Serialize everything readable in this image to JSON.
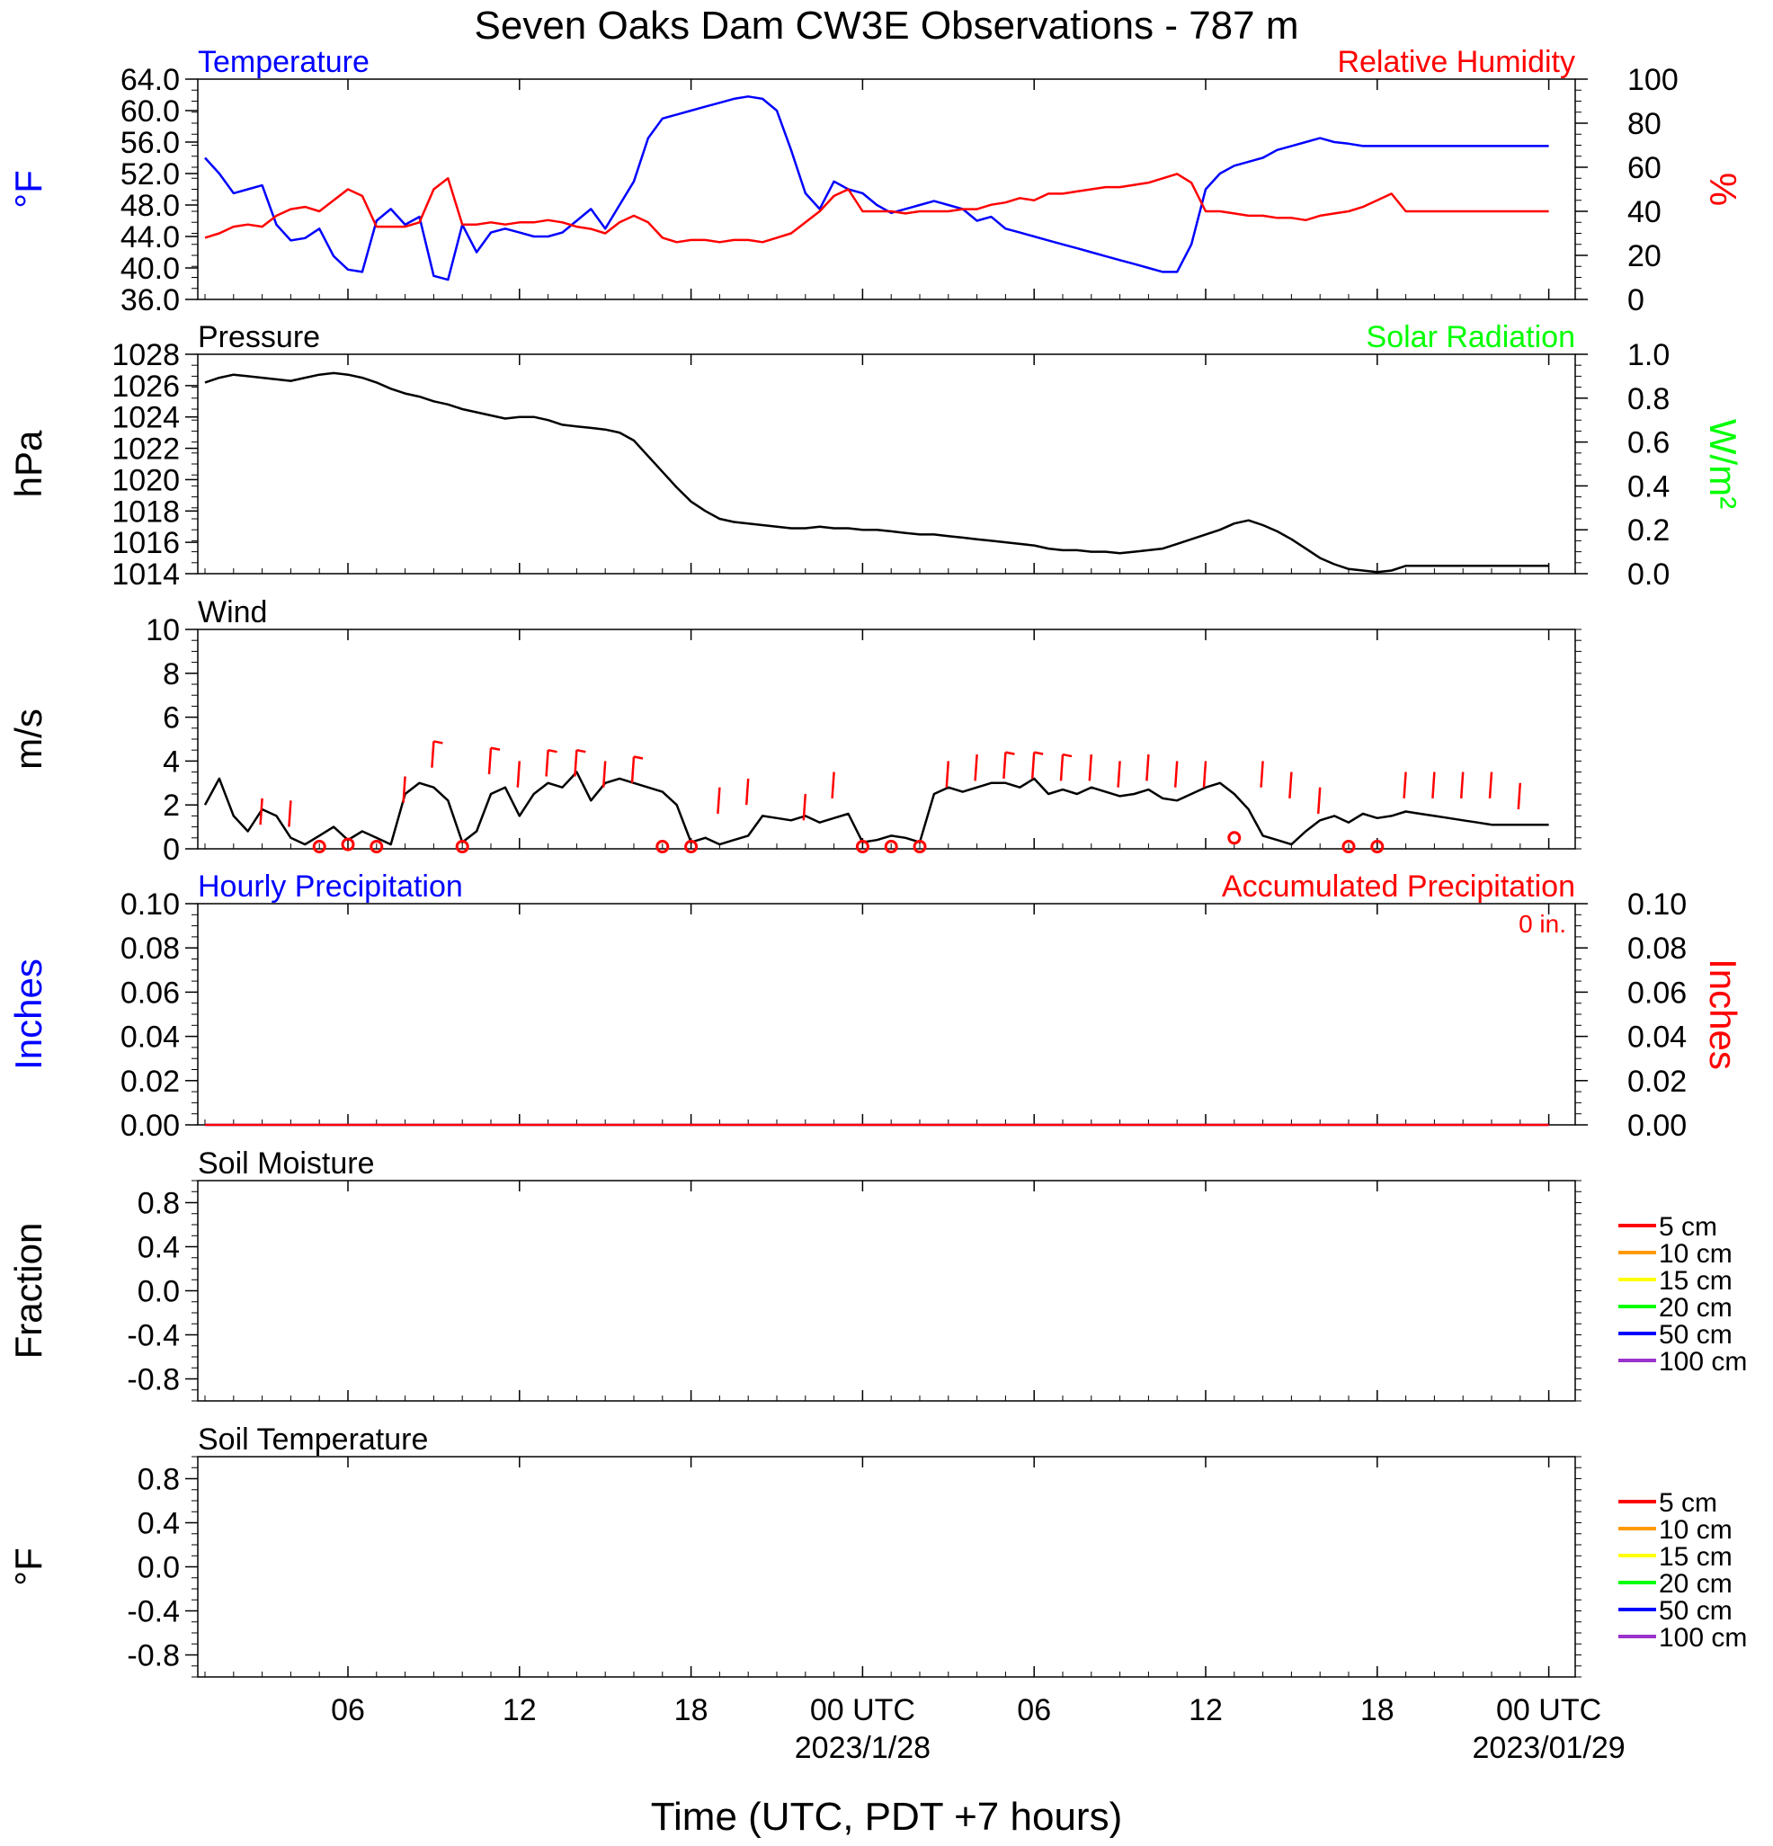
{
  "page": {
    "title": "Seven Oaks Dam CW3E Observations - 787 m",
    "xlabel": "Time (UTC, PDT +7 hours)"
  },
  "colors": {
    "temperature": "#0000ff",
    "humidity": "#ff0000",
    "pressure": "#000000",
    "solar": "#00ff00",
    "wind": "#000000",
    "barb": "#ff0000",
    "hourly_precip": "#0000ff",
    "accum_precip": "#ff0000"
  },
  "x_axis": {
    "range_hours": [
      0,
      48
    ],
    "ticks": [
      {
        "h": 5,
        "label": "06"
      },
      {
        "h": 11,
        "label": "12"
      },
      {
        "h": 17,
        "label": "18"
      },
      {
        "h": 23,
        "label": "00 UTC",
        "date": "2023/1/28"
      },
      {
        "h": 29,
        "label": "06"
      },
      {
        "h": 35,
        "label": "12"
      },
      {
        "h": 41,
        "label": "18"
      },
      {
        "h": 47,
        "label": "00 UTC",
        "date": "2023/01/29"
      }
    ]
  },
  "chart_data": [
    {
      "type": "line",
      "name": "Temperature / Relative Humidity",
      "left_title": "Temperature",
      "right_title": "Relative Humidity",
      "ylabel_left": "°F",
      "ylabel_right": "%",
      "ylim_left": [
        36,
        64
      ],
      "ylim_right": [
        0,
        100
      ],
      "yticks_left": [
        "36.0",
        "40.0",
        "44.0",
        "48.0",
        "52.0",
        "56.0",
        "60.0",
        "64.0"
      ],
      "yticks_right": [
        "0",
        "20",
        "40",
        "60",
        "80",
        "100"
      ],
      "x_hours": [
        0,
        0.5,
        1,
        1.5,
        2,
        2.5,
        3,
        3.5,
        4,
        4.5,
        5,
        5.5,
        6,
        6.5,
        7,
        7.5,
        8,
        8.5,
        9,
        9.5,
        10,
        10.5,
        11,
        11.5,
        12,
        12.5,
        13,
        13.5,
        14,
        14.5,
        15,
        15.5,
        16,
        16.5,
        17,
        17.5,
        18,
        18.5,
        19,
        19.5,
        20,
        20.5,
        21,
        21.5,
        22,
        22.5,
        23,
        23.5,
        24,
        24.5,
        25,
        25.5,
        26,
        26.5,
        27,
        27.5,
        28,
        28.5,
        29,
        29.5,
        30,
        30.5,
        31,
        31.5,
        32,
        32.5,
        33,
        33.5,
        34,
        34.5,
        35,
        35.5,
        36,
        36.5,
        37,
        37.5,
        38,
        38.5,
        39,
        39.5,
        40,
        40.5,
        41,
        41.5,
        42,
        42.5,
        43,
        43.5,
        44,
        44.5,
        45,
        45.5,
        46,
        46.5,
        47
      ],
      "series": [
        {
          "name": "Temperature",
          "axis": "left",
          "color": "#0000ff",
          "values": [
            54,
            52,
            49.5,
            50,
            50.5,
            45.5,
            43.5,
            43.8,
            45,
            41.5,
            39.8,
            39.5,
            46,
            47.5,
            45.5,
            46.5,
            39,
            38.5,
            45.5,
            42,
            44.5,
            45,
            44.5,
            44,
            44,
            44.5,
            46,
            47.5,
            45,
            48,
            51,
            56.5,
            59,
            59.5,
            60,
            60.5,
            61,
            61.5,
            61.8,
            61.5,
            60,
            55,
            49.5,
            47.5,
            51,
            50,
            49.5,
            48,
            47,
            47.5,
            48,
            48.5,
            48,
            47.5,
            46,
            46.5,
            45,
            44.5,
            44,
            43.5,
            43,
            42.5,
            42,
            41.5,
            41,
            40.5,
            40,
            39.5,
            39.5,
            43,
            50,
            52,
            53,
            53.5,
            54,
            55,
            55.5,
            56,
            56.5,
            56,
            55.8,
            55.5,
            55.5,
            55.5,
            55.5,
            55.5,
            55.5,
            55.5,
            55.5,
            55.5,
            55.5,
            55.5,
            55.5,
            55.5,
            55.5
          ]
        },
        {
          "name": "Relative Humidity",
          "axis": "right",
          "color": "#ff0000",
          "values": [
            28,
            30,
            33,
            34,
            33,
            38,
            41,
            42,
            40,
            45,
            50,
            47,
            33,
            33,
            33,
            35,
            50,
            55,
            34,
            34,
            35,
            34,
            35,
            35,
            36,
            35,
            33,
            32,
            30,
            35,
            38,
            35,
            28,
            26,
            27,
            27,
            26,
            27,
            27,
            26,
            28,
            30,
            35,
            40,
            47,
            50,
            40,
            40,
            40,
            39,
            40,
            40,
            40,
            41,
            41,
            43,
            44,
            46,
            45,
            48,
            48,
            49,
            50,
            51,
            51,
            52,
            53,
            55,
            57,
            53,
            40,
            40,
            39,
            38,
            38,
            37,
            37,
            36,
            38,
            39,
            40,
            42,
            45,
            48,
            40,
            40,
            40,
            40,
            40,
            40,
            40,
            40,
            40,
            40,
            40
          ]
        }
      ]
    },
    {
      "type": "line",
      "name": "Pressure / Solar Radiation",
      "left_title": "Pressure",
      "right_title": "Solar Radiation",
      "ylabel_left": "hPa",
      "ylabel_right": "W/m²",
      "ylim_left": [
        1014,
        1028
      ],
      "ylim_right": [
        0,
        1
      ],
      "yticks_left": [
        "1014",
        "1016",
        "1018",
        "1020",
        "1022",
        "1024",
        "1026",
        "1028"
      ],
      "yticks_right": [
        "0.0",
        "0.2",
        "0.4",
        "0.6",
        "0.8",
        "1.0"
      ],
      "x_hours": [
        0,
        0.5,
        1,
        1.5,
        2,
        2.5,
        3,
        3.5,
        4,
        4.5,
        5,
        5.5,
        6,
        6.5,
        7,
        7.5,
        8,
        8.5,
        9,
        9.5,
        10,
        10.5,
        11,
        11.5,
        12,
        12.5,
        13,
        13.5,
        14,
        14.5,
        15,
        15.5,
        16,
        16.5,
        17,
        17.5,
        18,
        18.5,
        19,
        19.5,
        20,
        20.5,
        21,
        21.5,
        22,
        22.5,
        23,
        23.5,
        24,
        24.5,
        25,
        25.5,
        26,
        26.5,
        27,
        27.5,
        28,
        28.5,
        29,
        29.5,
        30,
        30.5,
        31,
        31.5,
        32,
        32.5,
        33,
        33.5,
        34,
        34.5,
        35,
        35.5,
        36,
        36.5,
        37,
        37.5,
        38,
        38.5,
        39,
        39.5,
        40,
        40.5,
        41,
        41.5,
        42,
        42.5,
        43,
        43.5,
        44,
        44.5,
        45,
        45.5,
        46,
        46.5,
        47
      ],
      "series": [
        {
          "name": "Pressure",
          "axis": "left",
          "color": "#000000",
          "values": [
            1026.2,
            1026.5,
            1026.7,
            1026.6,
            1026.5,
            1026.4,
            1026.3,
            1026.5,
            1026.7,
            1026.8,
            1026.7,
            1026.5,
            1026.2,
            1025.8,
            1025.5,
            1025.3,
            1025.0,
            1024.8,
            1024.5,
            1024.3,
            1024.1,
            1023.9,
            1024.0,
            1024.0,
            1023.8,
            1023.5,
            1023.4,
            1023.3,
            1023.2,
            1023.0,
            1022.5,
            1021.5,
            1020.5,
            1019.5,
            1018.6,
            1018.0,
            1017.5,
            1017.3,
            1017.2,
            1017.1,
            1017.0,
            1016.9,
            1016.9,
            1017.0,
            1016.9,
            1016.9,
            1016.8,
            1016.8,
            1016.7,
            1016.6,
            1016.5,
            1016.5,
            1016.4,
            1016.3,
            1016.2,
            1016.1,
            1016.0,
            1015.9,
            1015.8,
            1015.6,
            1015.5,
            1015.5,
            1015.4,
            1015.4,
            1015.3,
            1015.4,
            1015.5,
            1015.6,
            1015.9,
            1016.2,
            1016.5,
            1016.8,
            1017.2,
            1017.4,
            1017.1,
            1016.7,
            1016.2,
            1015.6,
            1015.0,
            1014.6,
            1014.3,
            1014.2,
            1014.1,
            1014.2,
            1014.5,
            1014.5,
            1014.5,
            1014.5,
            1014.5,
            1014.5,
            1014.5,
            1014.5,
            1014.5,
            1014.5,
            1014.5
          ]
        }
      ]
    },
    {
      "type": "line",
      "name": "Wind",
      "left_title": "Wind",
      "ylabel_left": "m/s",
      "ylim_left": [
        0,
        10
      ],
      "yticks_left": [
        "0",
        "2",
        "4",
        "6",
        "8",
        "10"
      ],
      "x_hours": [
        0,
        0.5,
        1,
        1.5,
        2,
        2.5,
        3,
        3.5,
        4,
        4.5,
        5,
        5.5,
        6,
        6.5,
        7,
        7.5,
        8,
        8.5,
        9,
        9.5,
        10,
        10.5,
        11,
        11.5,
        12,
        12.5,
        13,
        13.5,
        14,
        14.5,
        15,
        15.5,
        16,
        16.5,
        17,
        17.5,
        18,
        18.5,
        19,
        19.5,
        20,
        20.5,
        21,
        21.5,
        22,
        22.5,
        23,
        23.5,
        24,
        24.5,
        25,
        25.5,
        26,
        26.5,
        27,
        27.5,
        28,
        28.5,
        29,
        29.5,
        30,
        30.5,
        31,
        31.5,
        32,
        32.5,
        33,
        33.5,
        34,
        34.5,
        35,
        35.5,
        36,
        36.5,
        37,
        37.5,
        38,
        38.5,
        39,
        39.5,
        40,
        40.5,
        41,
        41.5,
        42,
        42.5,
        43,
        43.5,
        44,
        44.5,
        45,
        45.5,
        46,
        46.5,
        47
      ],
      "series": [
        {
          "name": "Wind speed",
          "axis": "left",
          "color": "#000000",
          "values": [
            2.0,
            3.2,
            1.5,
            0.8,
            1.8,
            1.5,
            0.5,
            0.2,
            0.6,
            1.0,
            0.4,
            0.8,
            0.5,
            0.2,
            2.5,
            3.0,
            2.8,
            2.2,
            0.3,
            0.8,
            2.5,
            2.8,
            1.5,
            2.5,
            3.0,
            2.8,
            3.5,
            2.2,
            3.0,
            3.2,
            3.0,
            2.8,
            2.6,
            2.0,
            0.3,
            0.5,
            0.2,
            0.4,
            0.6,
            1.5,
            1.4,
            1.3,
            1.5,
            1.2,
            1.4,
            1.6,
            0.3,
            0.4,
            0.6,
            0.5,
            0.3,
            2.5,
            2.8,
            2.6,
            2.8,
            3.0,
            3.0,
            2.8,
            3.2,
            2.5,
            2.7,
            2.5,
            2.8,
            2.6,
            2.4,
            2.5,
            2.7,
            2.3,
            2.2,
            2.5,
            2.8,
            3.0,
            2.5,
            1.8,
            0.6,
            0.4,
            0.2,
            0.8,
            1.3,
            1.5,
            1.2,
            1.6,
            1.4,
            1.5,
            1.7,
            1.6,
            1.5,
            1.4,
            1.3,
            1.2,
            1.1,
            1.1,
            1.1,
            1.1,
            1.1
          ]
        }
      ],
      "calm_markers": [
        {
          "h": 4,
          "v": 0.1
        },
        {
          "h": 5,
          "v": 0.2
        },
        {
          "h": 6,
          "v": 0.1
        },
        {
          "h": 9,
          "v": 0.1
        },
        {
          "h": 16,
          "v": 0.1
        },
        {
          "h": 17,
          "v": 0.1
        },
        {
          "h": 23,
          "v": 0.1
        },
        {
          "h": 24,
          "v": 0.1
        },
        {
          "h": 25,
          "v": 0.1
        },
        {
          "h": 36,
          "v": 0.5
        },
        {
          "h": 40,
          "v": 0.1
        },
        {
          "h": 41,
          "v": 0.1
        }
      ],
      "barbs": [
        {
          "h": 2,
          "v": 2.3,
          "flag": false
        },
        {
          "h": 3,
          "v": 2.2,
          "flag": false
        },
        {
          "h": 7,
          "v": 3.3,
          "flag": false
        },
        {
          "h": 8,
          "v": 4.9,
          "flag": true
        },
        {
          "h": 10,
          "v": 4.6,
          "flag": true
        },
        {
          "h": 11,
          "v": 4.0,
          "flag": false
        },
        {
          "h": 12,
          "v": 4.5,
          "flag": true
        },
        {
          "h": 13,
          "v": 4.5,
          "flag": true
        },
        {
          "h": 14,
          "v": 4.0,
          "flag": false
        },
        {
          "h": 15,
          "v": 4.2,
          "flag": true
        },
        {
          "h": 18,
          "v": 2.8,
          "flag": false
        },
        {
          "h": 19,
          "v": 3.2,
          "flag": false
        },
        {
          "h": 21,
          "v": 2.5,
          "flag": false
        },
        {
          "h": 22,
          "v": 3.5,
          "flag": false
        },
        {
          "h": 26,
          "v": 4.0,
          "flag": false
        },
        {
          "h": 27,
          "v": 4.3,
          "flag": false
        },
        {
          "h": 28,
          "v": 4.4,
          "flag": true
        },
        {
          "h": 29,
          "v": 4.4,
          "flag": true
        },
        {
          "h": 30,
          "v": 4.3,
          "flag": true
        },
        {
          "h": 31,
          "v": 4.3,
          "flag": false
        },
        {
          "h": 32,
          "v": 4.0,
          "flag": false
        },
        {
          "h": 33,
          "v": 4.3,
          "flag": false
        },
        {
          "h": 34,
          "v": 4.0,
          "flag": false
        },
        {
          "h": 35,
          "v": 4.0,
          "flag": false
        },
        {
          "h": 37,
          "v": 4.0,
          "flag": false
        },
        {
          "h": 38,
          "v": 3.5,
          "flag": false
        },
        {
          "h": 39,
          "v": 2.8,
          "flag": false
        },
        {
          "h": 42,
          "v": 3.5,
          "flag": false
        },
        {
          "h": 43,
          "v": 3.5,
          "flag": false
        },
        {
          "h": 44,
          "v": 3.5,
          "flag": false
        },
        {
          "h": 45,
          "v": 3.5,
          "flag": false
        },
        {
          "h": 46,
          "v": 3.0,
          "flag": false
        }
      ]
    },
    {
      "type": "line",
      "name": "Hourly / Accumulated Precipitation",
      "left_title": "Hourly Precipitation",
      "right_title": "Accumulated Precipitation",
      "annotation": "0 in.",
      "ylabel_left": "Inches",
      "ylabel_right": "Inches",
      "ylim_left": [
        0,
        0.1
      ],
      "ylim_right": [
        0,
        0.1
      ],
      "yticks_left": [
        "0.00",
        "0.02",
        "0.04",
        "0.06",
        "0.08",
        "0.10"
      ],
      "yticks_right": [
        "0.00",
        "0.02",
        "0.04",
        "0.06",
        "0.08",
        "0.10"
      ],
      "x_hours": [
        0,
        47
      ],
      "series": [
        {
          "name": "Hourly Precipitation",
          "axis": "left",
          "color": "#0000ff",
          "values": [
            0,
            0
          ]
        },
        {
          "name": "Accumulated Precipitation",
          "axis": "right",
          "color": "#ff0000",
          "values": [
            0,
            0
          ]
        }
      ]
    },
    {
      "type": "line",
      "name": "Soil Moisture",
      "left_title": "Soil Moisture",
      "ylabel_left": "Fraction",
      "ylim_left": [
        -1,
        1
      ],
      "yticks_left": [
        "-0.8",
        "-0.4",
        "0.0",
        "0.4",
        "0.8"
      ],
      "series": [],
      "legend": [
        {
          "label": "5 cm",
          "color": "#ff0000"
        },
        {
          "label": "10 cm",
          "color": "#ff9900"
        },
        {
          "label": "15 cm",
          "color": "#ffff00"
        },
        {
          "label": "20 cm",
          "color": "#00ff00"
        },
        {
          "label": "50 cm",
          "color": "#0000ff"
        },
        {
          "label": "100 cm",
          "color": "#9933cc"
        }
      ]
    },
    {
      "type": "line",
      "name": "Soil Temperature",
      "left_title": "Soil Temperature",
      "ylabel_left": "°F",
      "ylim_left": [
        -1,
        1
      ],
      "yticks_left": [
        "-0.8",
        "-0.4",
        "0.0",
        "0.4",
        "0.8"
      ],
      "series": [],
      "legend": [
        {
          "label": "5 cm",
          "color": "#ff0000"
        },
        {
          "label": "10 cm",
          "color": "#ff9900"
        },
        {
          "label": "15 cm",
          "color": "#ffff00"
        },
        {
          "label": "20 cm",
          "color": "#00ff00"
        },
        {
          "label": "50 cm",
          "color": "#0000ff"
        },
        {
          "label": "100 cm",
          "color": "#9933cc"
        }
      ]
    }
  ]
}
